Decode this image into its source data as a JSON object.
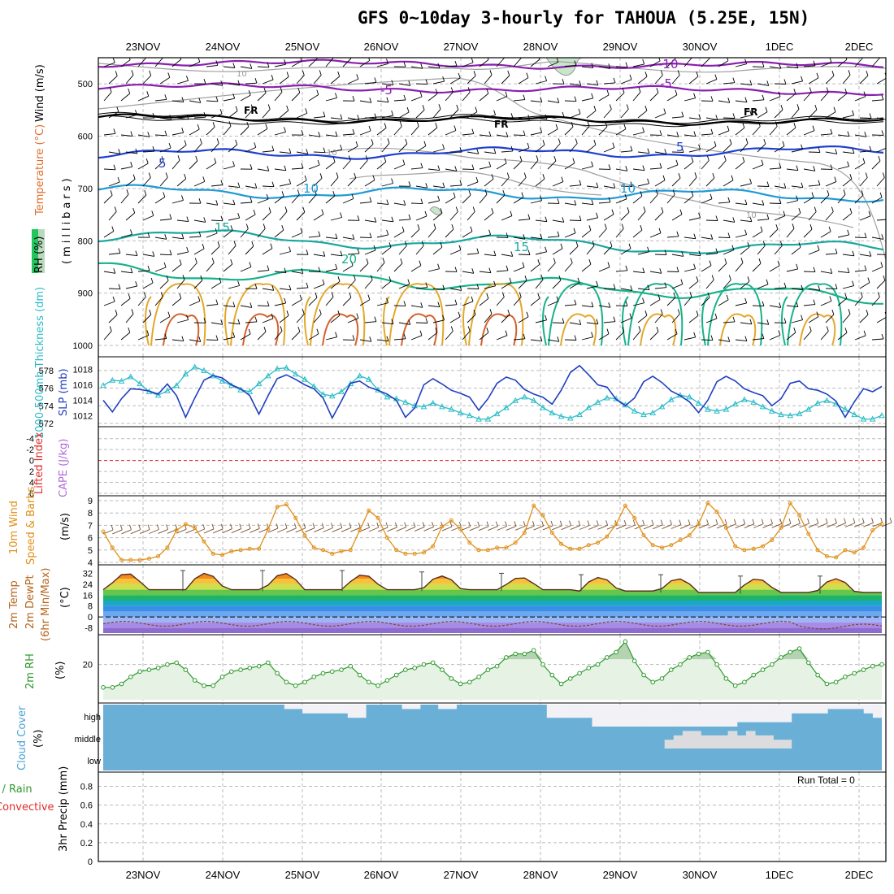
{
  "title": "GFS 0~10day 3-hourly for TAHOUA (5.25E, 15N)",
  "dates": [
    "23NOV",
    "24NOV",
    "25NOV",
    "26NOV",
    "27NOV",
    "28NOV",
    "29NOV",
    "30NOV",
    "1DEC",
    "2DEC"
  ],
  "panel_labels": {
    "upper_rh": "RH (%)",
    "upper_temp": "Temperature (°C)",
    "upper_wind": "Wind (m/s)",
    "upper_axis": "(millibars)",
    "thickness": "1000-500mb Thickness (dm)",
    "slp": "SLP (mb)",
    "lifted": "Lifted Index",
    "cape": "CAPE (J/kg)",
    "wind10_a": "10m Wind",
    "wind10_b": "Speed & Barbs",
    "wind10_units": "(m/s)",
    "temp_a": "2m Temp",
    "temp_b": "2m DewPt",
    "temp_c": "(6hr Min/Max)",
    "temp_units": "(°C)",
    "rh2m": "2m RH",
    "rh2m_units": "(%)",
    "cloud": "Cloud Cover",
    "cloud_units": "(%)",
    "precip_a": "Total / Rain",
    "precip_b": "Convective",
    "precip_c": "3hr Precip (mm)"
  },
  "contour_labels": {
    "t_m10": "-10",
    "t_m5": "-5",
    "fr": "FR",
    "t_5": "5",
    "t_10": "10",
    "t_15": "15",
    "t_20": "20",
    "rh_10": "10"
  },
  "ticks": {
    "pressure": [
      "500",
      "600",
      "700",
      "800",
      "900",
      "1000"
    ],
    "thickness": [
      "578",
      "576",
      "574",
      "572"
    ],
    "slp": [
      "1018",
      "1016",
      "1014",
      "1012"
    ],
    "lifted": [
      "-4",
      "-2",
      "0",
      "2",
      "4",
      "6"
    ],
    "wind": [
      "9",
      "8",
      "7",
      "6",
      "5",
      "4"
    ],
    "temp": [
      "32",
      "24",
      "16",
      "8",
      "0",
      "-8"
    ],
    "rh": [
      "20"
    ],
    "cloud": [
      "high",
      "middle",
      "low"
    ],
    "precip": [
      "0.8",
      "0.6",
      "0.4",
      "0.2",
      "0"
    ]
  },
  "run_total": "Run Total = 0",
  "chart_data": [
    {
      "type": "line",
      "name": "upper-air temperature cross-section",
      "ylabel": "millibars",
      "ylim": [
        1000,
        450
      ],
      "isotherms": [
        {
          "label": "-10",
          "pressure": 460,
          "color": "#8a1fb0"
        },
        {
          "label": "-5",
          "pressure": 505,
          "color": "#8a1fb0"
        },
        {
          "label": "FR",
          "pressure": 565,
          "color": "#000000"
        },
        {
          "label": "5",
          "pressure": 635,
          "color": "#1f3fd1"
        },
        {
          "label": "10",
          "pressure": 705,
          "color": "#1f9ad6"
        },
        {
          "label": "15",
          "pressure": 790,
          "color": "#1aa7a0"
        },
        {
          "label": "20",
          "pressure": 855,
          "color": "#17b28a"
        }
      ]
    },
    {
      "type": "line",
      "name": "thickness and SLP",
      "series": [
        {
          "name": "1000-500mb Thickness (dm)",
          "color": "#2bbcc8",
          "ylim": [
            572,
            579
          ],
          "values": [
            576.3,
            576.9,
            576.8,
            577.3,
            576.5,
            575.6,
            575.2,
            575.7,
            576.3,
            577.6,
            578.4,
            578.0,
            577.4,
            576.8,
            576.3,
            575.8,
            575.6,
            576.5,
            577.4,
            578.2,
            578.3,
            577.6,
            577.0,
            576.2,
            575.3,
            575.1,
            575.6,
            576.5,
            577.4,
            577.0,
            575.8,
            575.0,
            574.8,
            574.4,
            574.0,
            573.9,
            574.3,
            573.9,
            573.6,
            573.2,
            572.9,
            572.5,
            572.5,
            573.1,
            573.8,
            574.6,
            575.0,
            574.6,
            573.8,
            573.2,
            572.8,
            572.6,
            573.0,
            573.8,
            574.4,
            574.9,
            574.8,
            574.1,
            573.4,
            573.0,
            573.2,
            573.9,
            574.7,
            575.2,
            575.0,
            574.3,
            573.6,
            573.4,
            573.6,
            574.2,
            574.7,
            574.4,
            573.9,
            573.4,
            573.0,
            572.9,
            573.1,
            573.6,
            574.3,
            574.6,
            574.2,
            573.6,
            573.0,
            572.5,
            572.5,
            572.9
          ]
        },
        {
          "name": "SLP (mb)",
          "color": "#1f3fc0",
          "ylim": [
            1011,
            1019
          ],
          "values": [
            1014.0,
            1012.5,
            1014.2,
            1015.5,
            1015.4,
            1015.2,
            1014.8,
            1016.1,
            1014.6,
            1011.8,
            1014.3,
            1016.6,
            1017.2,
            1016.9,
            1016.0,
            1015.5,
            1014.6,
            1012.2,
            1014.6,
            1016.8,
            1017.3,
            1016.7,
            1016.0,
            1015.5,
            1014.3,
            1011.7,
            1013.9,
            1016.2,
            1016.5,
            1015.7,
            1015.3,
            1014.8,
            1014.0,
            1011.8,
            1013.0,
            1016.0,
            1016.8,
            1016.1,
            1015.3,
            1014.9,
            1014.4,
            1012.7,
            1014.2,
            1016.2,
            1017.0,
            1016.6,
            1015.4,
            1014.8,
            1014.4,
            1013.5,
            1015.3,
            1017.6,
            1018.5,
            1017.3,
            1016.0,
            1015.7,
            1014.1,
            1013.3,
            1014.3,
            1016.4,
            1017.1,
            1016.3,
            1015.2,
            1014.6,
            1013.8,
            1012.4,
            1014.0,
            1016.4,
            1017.1,
            1016.5,
            1015.5,
            1015.0,
            1014.6,
            1013.3,
            1014.2,
            1016.2,
            1016.5,
            1015.5,
            1015.3,
            1014.8,
            1013.9,
            1011.8,
            1013.8,
            1015.5,
            1015.1,
            1015.8
          ]
        }
      ]
    },
    {
      "type": "line",
      "name": "Lifted Index / CAPE",
      "ylim": [
        6,
        -6
      ],
      "values": []
    },
    {
      "type": "line",
      "name": "10m Wind Speed",
      "ylabel": "m/s",
      "ylim": [
        4,
        9
      ],
      "color": "#e0901a",
      "values": [
        6.5,
        5.2,
        4.2,
        4.2,
        4.2,
        4.3,
        4.5,
        5.2,
        6.6,
        7.1,
        6.8,
        5.7,
        4.7,
        4.6,
        4.9,
        5.0,
        5.1,
        5.1,
        6.7,
        8.5,
        8.7,
        7.6,
        6.2,
        5.2,
        5.0,
        4.7,
        4.9,
        5.0,
        6.6,
        8.2,
        7.6,
        6.0,
        5.0,
        4.7,
        4.7,
        4.8,
        5.3,
        6.9,
        7.4,
        6.7,
        5.6,
        5.0,
        5.0,
        5.2,
        5.2,
        5.6,
        6.4,
        8.6,
        7.8,
        6.4,
        5.5,
        5.1,
        5.1,
        5.4,
        5.6,
        6.1,
        7.1,
        8.6,
        7.6,
        6.2,
        5.4,
        5.2,
        5.4,
        5.8,
        6.2,
        7.1,
        8.8,
        8.1,
        6.8,
        5.3,
        5.0,
        5.1,
        5.3,
        5.8,
        6.8,
        8.8,
        7.8,
        6.3,
        5.0,
        4.5,
        4.4,
        5.0,
        4.8,
        5.2,
        6.6,
        7.1
      ]
    },
    {
      "type": "area",
      "name": "2m Temp / DewPt",
      "ylabel": "°C",
      "ylim": [
        -13,
        37
      ],
      "temp_maxima": [
        32,
        32,
        32,
        31,
        30,
        29,
        29,
        28,
        28,
        28
      ],
      "temp_minima": [
        20,
        20,
        20,
        20,
        20,
        20,
        19,
        18,
        18,
        18
      ],
      "dewpoint_range": [
        -7,
        -3
      ]
    },
    {
      "type": "area",
      "name": "2m RH",
      "ylabel": "%",
      "ylim": [
        0,
        35
      ],
      "color": "#2f9a2f",
      "values": [
        7,
        7,
        9,
        13,
        16,
        17,
        18,
        20,
        21,
        17,
        11,
        8,
        8,
        13,
        16,
        17,
        18,
        19,
        21,
        15,
        10,
        8,
        10,
        13,
        15,
        16,
        17,
        19,
        14,
        10,
        8,
        11,
        14,
        17,
        18,
        20,
        21,
        17,
        12,
        9,
        10,
        13,
        17,
        19,
        24,
        26,
        26,
        28,
        20,
        14,
        9,
        12,
        15,
        18,
        20,
        24,
        27,
        33,
        22,
        14,
        10,
        12,
        17,
        20,
        24,
        26,
        27,
        20,
        12,
        8,
        10,
        14,
        17,
        20,
        24,
        27,
        29,
        21,
        14,
        9,
        10,
        13,
        15,
        17,
        19,
        20
      ]
    },
    {
      "type": "table",
      "name": "Cloud Cover",
      "layers": [
        "high",
        "middle",
        "low"
      ],
      "high_pct": [
        0,
        0,
        0,
        0,
        0,
        0,
        0,
        0,
        0,
        0,
        0,
        0,
        0,
        0,
        0,
        0,
        0,
        0,
        0,
        0,
        20,
        20,
        40,
        40,
        40,
        40,
        40,
        60,
        60,
        0,
        0,
        0,
        0,
        20,
        20,
        0,
        0,
        20,
        20,
        0,
        0,
        0,
        0,
        0,
        0,
        0,
        0,
        0,
        0,
        60,
        60,
        60,
        60,
        60,
        100,
        100,
        100,
        100,
        100,
        100,
        100,
        100,
        100,
        100,
        100,
        100,
        100,
        100,
        100,
        100,
        80,
        80,
        80,
        80,
        80,
        80,
        40,
        40,
        40,
        40,
        20,
        20,
        20,
        20,
        40,
        60
      ],
      "middle_pct": [
        0,
        0,
        0,
        0,
        0,
        0,
        0,
        0,
        0,
        0,
        0,
        0,
        0,
        0,
        0,
        0,
        0,
        0,
        0,
        0,
        0,
        0,
        0,
        0,
        0,
        0,
        0,
        0,
        0,
        0,
        0,
        0,
        0,
        0,
        0,
        0,
        0,
        0,
        0,
        0,
        0,
        0,
        0,
        0,
        0,
        0,
        0,
        0,
        0,
        0,
        0,
        0,
        0,
        0,
        0,
        0,
        0,
        0,
        0,
        0,
        0,
        0,
        40,
        60,
        80,
        80,
        60,
        60,
        60,
        80,
        60,
        80,
        60,
        60,
        40,
        40,
        0,
        0,
        0,
        0,
        0,
        0,
        0,
        0,
        0,
        0
      ],
      "low_pct": []
    },
    {
      "type": "bar",
      "name": "3hr Precip",
      "ylabel": "mm",
      "ylim": [
        0,
        0.9
      ],
      "values": [],
      "run_total": 0
    }
  ]
}
